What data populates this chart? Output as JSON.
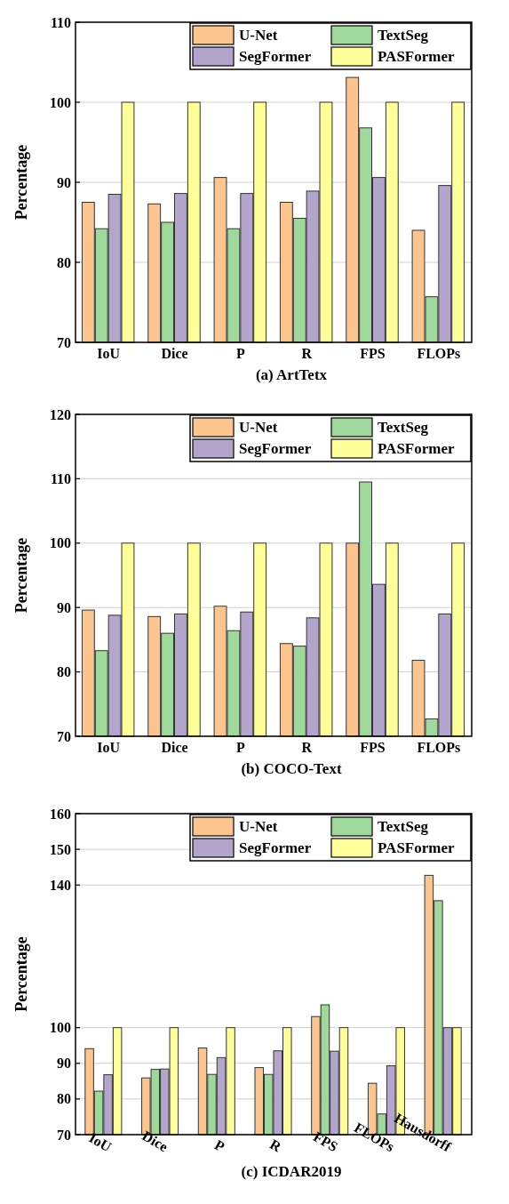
{
  "chart_data": [
    {
      "type": "bar",
      "title": "(a) ArtTetx",
      "ylabel": "Percentage",
      "categories": [
        "IoU",
        "Dice",
        "P",
        "R",
        "FPS",
        "FLOPs"
      ],
      "series": [
        {
          "name": "U-Net",
          "color": "#fcc590",
          "values": [
            87.5,
            87.3,
            90.6,
            87.5,
            103.1,
            84.0
          ]
        },
        {
          "name": "TextSeg",
          "color": "#9fd89b",
          "values": [
            84.2,
            85.0,
            84.2,
            85.5,
            96.8,
            75.7
          ]
        },
        {
          "name": "SegFormer",
          "color": "#b3a5cc",
          "values": [
            88.5,
            88.6,
            88.6,
            88.9,
            90.6,
            89.6
          ]
        },
        {
          "name": "PASFormer",
          "color": "#ffff99",
          "values": [
            100,
            100,
            100,
            100,
            100,
            100
          ]
        }
      ],
      "ylim": [
        70,
        110
      ],
      "yticks": [
        70,
        80,
        90,
        100,
        110
      ],
      "grid": "y",
      "legend": "top right"
    },
    {
      "type": "bar",
      "title": "(b) COCO-Text",
      "ylabel": "Percentage",
      "categories": [
        "IoU",
        "Dice",
        "P",
        "R",
        "FPS",
        "FLOPs"
      ],
      "series": [
        {
          "name": "U-Net",
          "color": "#fcc590",
          "values": [
            89.6,
            88.6,
            90.2,
            84.4,
            100,
            81.8
          ]
        },
        {
          "name": "TextSeg",
          "color": "#9fd89b",
          "values": [
            83.3,
            86.0,
            86.4,
            84.0,
            109.5,
            72.7
          ]
        },
        {
          "name": "SegFormer",
          "color": "#b3a5cc",
          "values": [
            88.8,
            89.0,
            89.3,
            88.4,
            93.6,
            89.0
          ]
        },
        {
          "name": "PASFormer",
          "color": "#ffff99",
          "values": [
            100,
            100,
            100,
            100,
            100,
            100
          ]
        }
      ],
      "ylim": [
        70,
        120
      ],
      "yticks": [
        70,
        80,
        90,
        100,
        110,
        120
      ],
      "grid": "y",
      "legend": "top right"
    },
    {
      "type": "bar",
      "title": "(c) ICDAR2019",
      "ylabel": "Percentage",
      "categories": [
        "IoU",
        "Dice",
        "P",
        "R",
        "FPS",
        "FLOPs",
        "Hausdorff"
      ],
      "series": [
        {
          "name": "U-Net",
          "color": "#fcc590",
          "values": [
            94.1,
            85.9,
            94.3,
            88.8,
            103.1,
            84.4,
            142.7
          ]
        },
        {
          "name": "TextSeg",
          "color": "#9fd89b",
          "values": [
            82.2,
            88.3,
            86.9,
            86.9,
            106.4,
            75.8,
            135.6
          ]
        },
        {
          "name": "SegFormer",
          "color": "#b3a5cc",
          "values": [
            86.8,
            88.4,
            91.6,
            93.5,
            93.4,
            89.3,
            100
          ]
        },
        {
          "name": "PASFormer",
          "color": "#ffff99",
          "values": [
            100,
            100,
            100,
            100,
            100,
            100,
            100
          ]
        }
      ],
      "ylim": [
        70,
        160
      ],
      "yticks": [
        70,
        80,
        90,
        100,
        140,
        150,
        160
      ],
      "grid": "y",
      "legend": "top right"
    }
  ]
}
